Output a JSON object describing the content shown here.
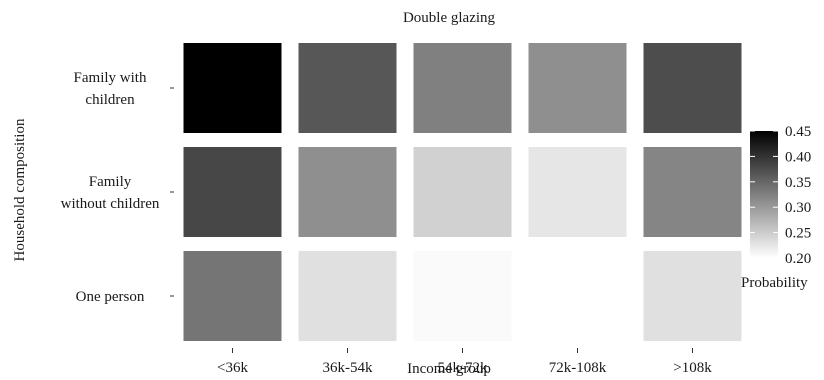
{
  "chart_data": {
    "type": "heatmap",
    "title": "Double glazing",
    "xlabel": "Income group",
    "ylabel": "Household composition",
    "x_categories": [
      "<36k",
      "36k-54k",
      "54k-72k",
      "72k-108k",
      ">108k"
    ],
    "y_categories": [
      "Family with children",
      "Family without children",
      "One person"
    ],
    "y_tick_lines": [
      [
        "Family with",
        "children"
      ],
      [
        "Family",
        "without children"
      ],
      [
        "One person"
      ]
    ],
    "values": [
      [
        0.45,
        0.365,
        0.325,
        0.31,
        0.375
      ],
      [
        0.38,
        0.31,
        0.245,
        0.225,
        0.32
      ],
      [
        0.335,
        0.23,
        0.205,
        0.2,
        0.23
      ]
    ],
    "legend": {
      "title": "Probability",
      "ticks": [
        "0.20",
        "0.25",
        "0.30",
        "0.35",
        "0.40",
        "0.45"
      ],
      "range": [
        0.2,
        0.45
      ],
      "placement": "right"
    },
    "color_low": "#ffffff",
    "color_high": "#000000",
    "grid": false
  }
}
